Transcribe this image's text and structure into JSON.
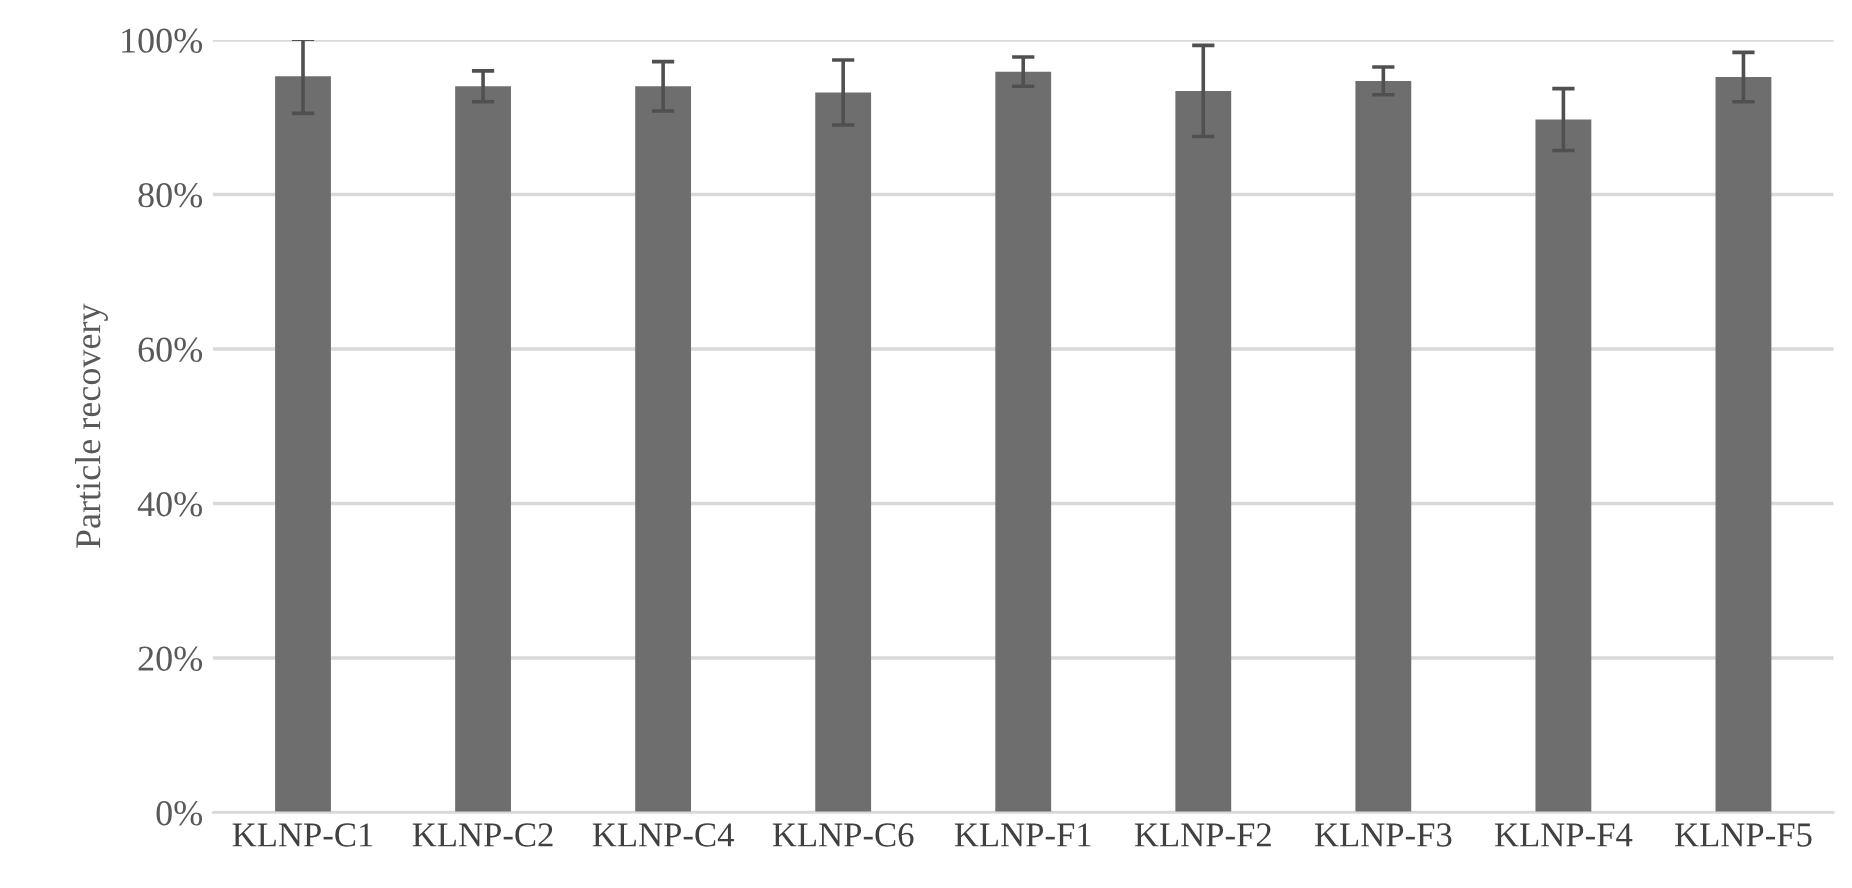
{
  "chart_data": {
    "type": "bar",
    "ylabel": "Particle recovery",
    "categories": [
      "KLNP-C1",
      "KLNP-C2",
      "KLNP-C4",
      "KLNP-C6",
      "KLNP-F1",
      "KLNP-F2",
      "KLNP-F3",
      "KLNP-F4",
      "KLNP-F5"
    ],
    "values": [
      95.3,
      94.0,
      94.0,
      93.2,
      95.9,
      93.4,
      94.7,
      89.7,
      95.2
    ],
    "errors": [
      4.8,
      2.0,
      3.2,
      4.2,
      1.9,
      5.9,
      1.8,
      4.0,
      3.2
    ],
    "color": "#6e6e6e",
    "ylim": [
      0,
      100
    ],
    "yticks": [
      {
        "value": 0,
        "label": "0%"
      },
      {
        "value": 20,
        "label": "20%"
      },
      {
        "value": 40,
        "label": "40%"
      },
      {
        "value": 60,
        "label": "60%"
      },
      {
        "value": 80,
        "label": "80%"
      },
      {
        "value": 100,
        "label": "100%"
      }
    ],
    "grid": "y"
  }
}
